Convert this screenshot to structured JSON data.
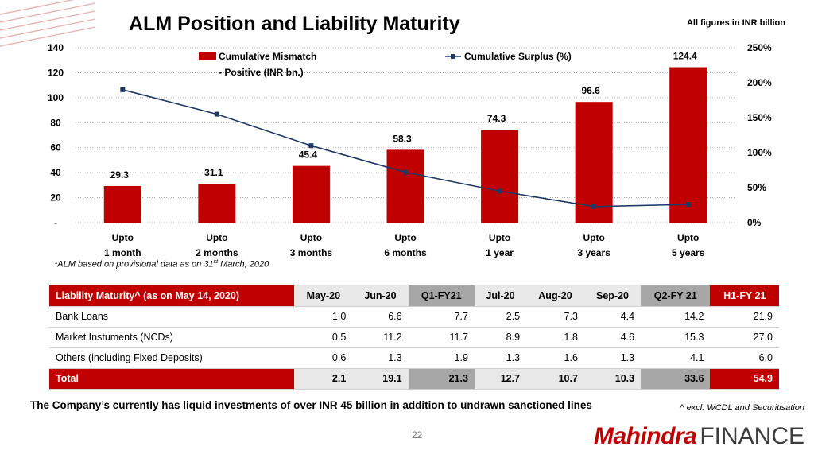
{
  "header": {
    "title": "ALM Position and Liability Maturity",
    "units_note": "All figures in INR billion"
  },
  "chart_data": {
    "type": "bar",
    "categories": [
      [
        "Upto",
        "1 month"
      ],
      [
        "Upto",
        "2 months"
      ],
      [
        "Upto",
        "3 months"
      ],
      [
        "Upto",
        "6 months"
      ],
      [
        "Upto",
        "1 year"
      ],
      [
        "Upto",
        "3 years"
      ],
      [
        "Upto",
        "5 years"
      ]
    ],
    "series": [
      {
        "name": "Cumulative Mismatch - Positive (INR bn.)",
        "name_lines": [
          "Cumulative Mismatch",
          "- Positive (INR bn.)"
        ],
        "type": "bar",
        "axis": "left",
        "color": "#c00000",
        "values": [
          29.3,
          31.1,
          45.4,
          58.3,
          74.3,
          96.6,
          124.4
        ],
        "labels": [
          "29.3",
          "31.1",
          "45.4",
          "58.3",
          "74.3",
          "96.6",
          "124.4"
        ]
      },
      {
        "name": "Cumulative Surplus (%)",
        "type": "line",
        "axis": "right",
        "color": "#1f3864",
        "values": [
          190,
          155,
          110,
          72,
          45,
          23,
          26
        ]
      }
    ],
    "ylim": [
      0,
      140
    ],
    "y_ticks": [
      0,
      20,
      40,
      60,
      80,
      100,
      120,
      140
    ],
    "y_tick_labels": [
      "-",
      "20",
      "40",
      "60",
      "80",
      "100",
      "120",
      "140"
    ],
    "y2lim": [
      0,
      250
    ],
    "y2_ticks": [
      0,
      50,
      100,
      150,
      200,
      250
    ],
    "y2_tick_labels": [
      "0%",
      "50%",
      "100%",
      "150%",
      "200%",
      "250%"
    ],
    "grid": true,
    "legend": "top"
  },
  "alm_note": {
    "prefix": "*ALM based on provisional data as on 31",
    "sup": "st",
    "suffix": " March, 2020"
  },
  "table": {
    "headers": [
      "Liability Maturity^ (as on May 14, 2020)",
      "May-20",
      "Jun-20",
      "Q1-FY21",
      "Jul-20",
      "Aug-20",
      "Sep-20",
      "Q2-FY 21",
      "H1-FY 21"
    ],
    "rows": [
      [
        "Bank Loans",
        "1.0",
        "6.6",
        "7.7",
        "2.5",
        "7.3",
        "4.4",
        "14.2",
        "21.9"
      ],
      [
        "Market Instuments (NCDs)",
        "0.5",
        "11.2",
        "11.7",
        "8.9",
        "1.8",
        "4.6",
        "15.3",
        "27.0"
      ],
      [
        "Others (including Fixed Deposits)",
        "0.6",
        "1.3",
        "1.9",
        "1.3",
        "1.6",
        "1.3",
        "4.1",
        "6.0"
      ]
    ],
    "total": [
      "Total",
      "2.1",
      "19.1",
      "21.3",
      "12.7",
      "10.7",
      "10.3",
      "33.6",
      "54.9"
    ]
  },
  "footer": {
    "liquidity_text": "The Company’s currently has liquid investments of over INR 45 billion in addition to undrawn sanctioned lines",
    "footnote": "^ excl. WCDL and Securitisation",
    "page_number": "22",
    "brand_red": "Mahindra",
    "brand_grey": "FINANCE"
  },
  "colors": {
    "accent_red": "#c00000",
    "line_navy": "#1f3864",
    "quarter_grey": "#a6a6a6",
    "header_grey": "#e8e8e8"
  }
}
